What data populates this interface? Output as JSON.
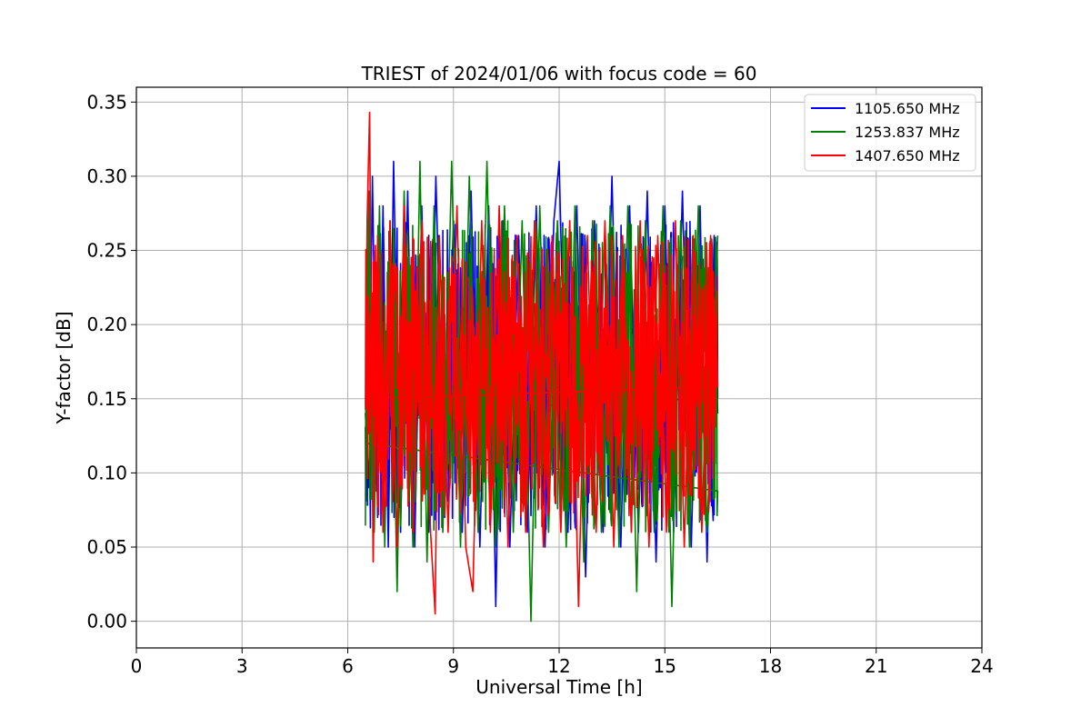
{
  "chart_data": {
    "type": "line",
    "title": "TRIEST of 2024/01/06 with focus code = 60",
    "xlabel": "Universal Time [h]",
    "ylabel": "Y-factor [dB]",
    "xlim": [
      0,
      24
    ],
    "ylim": [
      -0.018,
      0.36
    ],
    "xticks": [
      0,
      3,
      6,
      9,
      12,
      15,
      18,
      21,
      24
    ],
    "xtick_labels": [
      "0",
      "3",
      "6",
      "9",
      "12",
      "15",
      "18",
      "21",
      "24"
    ],
    "yticks": [
      0.0,
      0.05,
      0.1,
      0.15,
      0.2,
      0.25,
      0.3,
      0.35
    ],
    "ytick_labels": [
      "0.00",
      "0.05",
      "0.10",
      "0.15",
      "0.20",
      "0.25",
      "0.30",
      "0.35"
    ],
    "grid": true,
    "legend_position": "top-right",
    "x_range_of_data": [
      6.5,
      16.5
    ],
    "series": [
      {
        "name": "1105.650 MHz",
        "color": "#0000ff",
        "min": 0.0,
        "max": 0.31,
        "typical_band": [
          0.06,
          0.27
        ],
        "x": [
          6.5,
          6.6,
          6.7,
          6.85,
          7.0,
          7.15,
          7.3,
          7.5,
          7.7,
          7.9,
          8.1,
          8.3,
          8.5,
          8.75,
          9.0,
          9.25,
          9.5,
          9.75,
          10.0,
          10.2,
          10.4,
          10.6,
          10.85,
          11.1,
          11.35,
          11.6,
          11.85,
          12.0,
          12.25,
          12.5,
          12.75,
          13.0,
          13.25,
          13.5,
          13.75,
          14.0,
          14.25,
          14.5,
          14.75,
          15.0,
          15.25,
          15.5,
          15.75,
          16.0,
          16.2,
          16.4,
          16.5
        ],
        "y": [
          0.14,
          0.09,
          0.3,
          0.07,
          0.28,
          0.05,
          0.31,
          0.06,
          0.29,
          0.05,
          0.28,
          0.06,
          0.3,
          0.07,
          0.27,
          0.06,
          0.29,
          0.05,
          0.28,
          0.01,
          0.27,
          0.05,
          0.26,
          0.06,
          0.28,
          0.05,
          0.27,
          0.31,
          0.06,
          0.28,
          0.03,
          0.27,
          0.06,
          0.3,
          0.05,
          0.28,
          0.06,
          0.29,
          0.04,
          0.28,
          0.06,
          0.29,
          0.05,
          0.28,
          0.04,
          0.26,
          0.14
        ]
      },
      {
        "name": "1253.837 MHz",
        "color": "#008000",
        "min": 0.0,
        "max": 0.315,
        "typical_band": [
          0.06,
          0.27
        ],
        "x": [
          6.5,
          6.6,
          6.75,
          6.9,
          7.05,
          7.2,
          7.4,
          7.6,
          7.85,
          8.05,
          8.25,
          8.45,
          8.7,
          8.95,
          9.2,
          9.45,
          9.7,
          9.95,
          10.2,
          10.45,
          10.7,
          10.95,
          11.2,
          11.45,
          11.7,
          11.95,
          12.2,
          12.45,
          12.7,
          12.95,
          13.2,
          13.45,
          13.7,
          13.95,
          14.2,
          14.45,
          14.7,
          14.95,
          15.2,
          15.45,
          15.7,
          15.95,
          16.2,
          16.5
        ],
        "y": [
          0.12,
          0.29,
          0.06,
          0.28,
          0.05,
          0.27,
          0.02,
          0.29,
          0.05,
          0.31,
          0.04,
          0.28,
          0.06,
          0.31,
          0.05,
          0.3,
          0.06,
          0.31,
          0.05,
          0.28,
          0.06,
          0.27,
          0.0,
          0.28,
          0.06,
          0.27,
          0.05,
          0.28,
          0.04,
          0.27,
          0.06,
          0.28,
          0.05,
          0.28,
          0.02,
          0.27,
          0.06,
          0.28,
          0.01,
          0.27,
          0.05,
          0.28,
          0.06,
          0.26
        ]
      },
      {
        "name": "1407.650 MHz",
        "color": "#ff0000",
        "min": 0.005,
        "max": 0.343,
        "typical_band": [
          0.07,
          0.26
        ],
        "x": [
          6.5,
          6.55,
          6.62,
          6.72,
          6.85,
          7.0,
          7.2,
          7.4,
          7.6,
          7.85,
          8.1,
          8.35,
          8.48,
          8.6,
          8.85,
          9.1,
          9.35,
          9.55,
          9.8,
          10.05,
          10.3,
          10.55,
          10.8,
          11.05,
          11.3,
          11.55,
          11.8,
          12.05,
          12.3,
          12.55,
          12.8,
          13.05,
          13.3,
          13.55,
          13.8,
          14.05,
          14.3,
          14.55,
          14.8,
          15.05,
          15.3,
          15.55,
          15.8,
          16.05,
          16.3,
          16.5
        ],
        "y": [
          0.15,
          0.27,
          0.343,
          0.04,
          0.26,
          0.06,
          0.27,
          0.05,
          0.28,
          0.06,
          0.27,
          0.06,
          0.005,
          0.26,
          0.06,
          0.28,
          0.05,
          0.02,
          0.27,
          0.06,
          0.28,
          0.05,
          0.26,
          0.06,
          0.27,
          0.05,
          0.26,
          0.06,
          0.27,
          0.01,
          0.26,
          0.06,
          0.27,
          0.05,
          0.26,
          0.06,
          0.27,
          0.05,
          0.26,
          0.06,
          0.27,
          0.05,
          0.26,
          0.06,
          0.26,
          0.16
        ]
      }
    ]
  }
}
